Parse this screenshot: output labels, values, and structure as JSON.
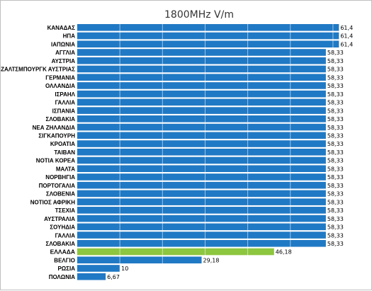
{
  "colors": {
    "bar": "#2079c4",
    "highlight": "#8dc63f"
  },
  "chart_data": {
    "type": "bar",
    "orientation": "horizontal",
    "title": "1800MHz V/m",
    "xlim": [
      0,
      65
    ],
    "grid": true,
    "highlight": "ΕΛΛΑΔΑ",
    "categories": [
      "ΚΑΝΑΔΑΣ",
      "ΗΠΑ",
      "ΙΑΠΩΝΙΑ",
      "ΑΓΓΛΙΑ",
      "ΑΥΣΤΡΙΑ",
      "ΖΑΛΤΣΜΠΟΥΡΓΚ ΑΥΣΤΡΙΑΣ",
      "ΓΕΡΜΑΝΙΑ",
      "ΟΛΛΑΝΔΙΑ",
      "ΙΣΡΑΗΛ",
      "ΓΑΛΛΙΑ",
      "ΙΣΠΑΝΙΑ",
      "ΣΛΟΒΑΚΙΑ",
      "ΝΕΑ ΖΗΛΑΝΔΙΑ",
      "ΣΙΓΚΑΠΟΥΡΗ",
      "ΚΡΟΑΤΙΑ",
      "ΤΑΙΒΑΝ",
      "ΝΟΤΙΑ ΚΟΡΕΑ",
      "ΜΑΛΤΑ",
      "ΝΟΡΒΗΓΙΑ",
      "ΠΟΡΤΟΓΑΛΙΑ",
      "ΣΛΟΒΕΝΙΑ",
      "ΝΟΤΙΟΣ ΑΦΡΙΚΗ",
      "ΤΣΕΧΙΑ",
      "ΑΥΣΤΡΑΛΙΑ",
      "ΣΟΥΗΔΙΑ",
      "ΓΑΛΛΙΑ",
      "ΣΛΟΒΑΚΙΑ",
      "ΕΛΛΑΔΑ",
      "ΒΕΛΓΙΟ",
      "ΡΩΣΙΑ",
      "ΠΟΛΩΝΙΑ"
    ],
    "values": [
      61.4,
      61.4,
      61.4,
      58.33,
      58.33,
      58.33,
      58.33,
      58.33,
      58.33,
      58.33,
      58.33,
      58.33,
      58.33,
      58.33,
      58.33,
      58.33,
      58.33,
      58.33,
      58.33,
      58.33,
      58.33,
      58.33,
      58.33,
      58.33,
      58.33,
      58.33,
      58.33,
      46.18,
      29.18,
      10,
      6.67
    ],
    "value_labels": [
      "61,4",
      "61,4",
      "61,4",
      "58,33",
      "58,33",
      "58,33",
      "58,33",
      "58,33",
      "58,33",
      "58,33",
      "58,33",
      "58,33",
      "58,33",
      "58,33",
      "58,33",
      "58,33",
      "58,33",
      "58,33",
      "58,33",
      "58,33",
      "58,33",
      "58,33",
      "58,33",
      "58,33",
      "58,33",
      "58,33",
      "58,33",
      "46,18",
      "29,18",
      "10",
      "6,67"
    ]
  }
}
